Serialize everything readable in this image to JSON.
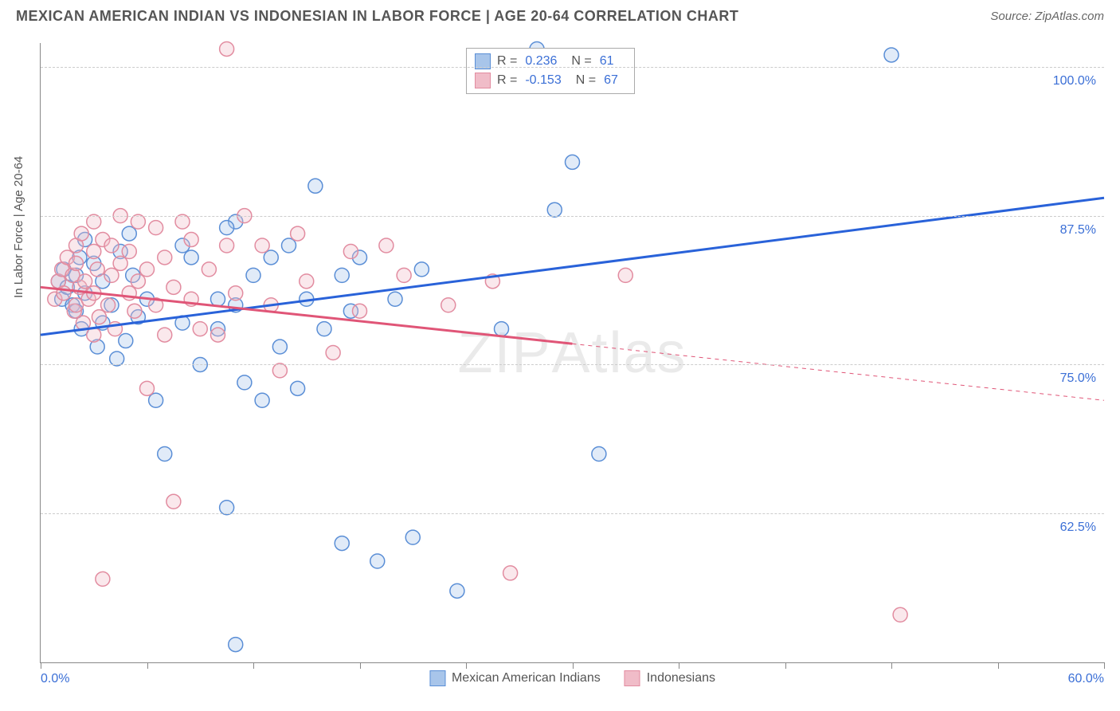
{
  "header": {
    "title": "MEXICAN AMERICAN INDIAN VS INDONESIAN IN LABOR FORCE | AGE 20-64 CORRELATION CHART",
    "source_label": "Source: ",
    "source_name": "ZipAtlas.com"
  },
  "chart": {
    "type": "scatter_with_regression",
    "ylabel": "In Labor Force | Age 20-64",
    "watermark": "ZIPAtlas",
    "xlim": [
      0,
      60
    ],
    "ylim": [
      50,
      102
    ],
    "x_ticks": [
      0,
      6,
      12,
      18,
      24,
      30,
      36,
      42,
      48,
      54,
      60
    ],
    "x_tick_labels": {
      "0": "0.0%",
      "60": "60.0%"
    },
    "y_gridlines": [
      62.5,
      75.0,
      87.5,
      100.0
    ],
    "y_tick_labels": [
      "62.5%",
      "75.0%",
      "87.5%",
      "100.0%"
    ],
    "background_color": "#ffffff",
    "grid_color": "#cccccc",
    "axis_color": "#888888",
    "tick_label_color": "#3b6fd6",
    "axis_label_color": "#555555",
    "point_radius": 9,
    "point_fill_opacity": 0.35,
    "point_stroke_width": 1.5,
    "line_width_solid": 3,
    "line_width_dash": 1,
    "series": [
      {
        "name": "Mexican American Indians",
        "color_stroke": "#5a8ed6",
        "color_fill": "#a8c5ea",
        "line_color": "#2962d9",
        "R": "0.236",
        "N": "61",
        "regression": {
          "x1": 0,
          "y1": 77.5,
          "x2": 60,
          "y2": 89.0,
          "solid_until_x": 60
        },
        "points": [
          [
            1.0,
            82.0
          ],
          [
            1.2,
            80.5
          ],
          [
            1.5,
            81.5
          ],
          [
            1.3,
            83.0
          ],
          [
            2.0,
            82.5
          ],
          [
            1.8,
            80.0
          ],
          [
            2.2,
            84.0
          ],
          [
            2.5,
            81.0
          ],
          [
            2.0,
            79.5
          ],
          [
            3.0,
            83.5
          ],
          [
            2.3,
            78.0
          ],
          [
            2.5,
            85.5
          ],
          [
            3.5,
            82.0
          ],
          [
            4.0,
            80.0
          ],
          [
            4.5,
            84.5
          ],
          [
            3.2,
            76.5
          ],
          [
            3.5,
            78.5
          ],
          [
            5.0,
            86.0
          ],
          [
            4.3,
            75.5
          ],
          [
            5.5,
            79.0
          ],
          [
            6.0,
            80.5
          ],
          [
            4.8,
            77.0
          ],
          [
            6.5,
            72.0
          ],
          [
            7.0,
            67.5
          ],
          [
            5.2,
            82.5
          ],
          [
            11.0,
            87.0
          ],
          [
            8.0,
            78.5
          ],
          [
            8.0,
            85.0
          ],
          [
            8.5,
            84.0
          ],
          [
            9.0,
            75.0
          ],
          [
            10.5,
            86.5
          ],
          [
            10.0,
            80.5
          ],
          [
            10.0,
            78.0
          ],
          [
            10.5,
            63.0
          ],
          [
            11.0,
            80.0
          ],
          [
            11.0,
            51.5
          ],
          [
            11.5,
            73.5
          ],
          [
            12.0,
            82.5
          ],
          [
            12.5,
            72.0
          ],
          [
            13.0,
            84.0
          ],
          [
            13.5,
            76.5
          ],
          [
            14.0,
            85.0
          ],
          [
            14.5,
            73.0
          ],
          [
            15.0,
            80.5
          ],
          [
            15.5,
            90.0
          ],
          [
            16.0,
            78.0
          ],
          [
            17.0,
            82.5
          ],
          [
            17.0,
            60.0
          ],
          [
            17.5,
            79.5
          ],
          [
            18.0,
            84.0
          ],
          [
            19.0,
            58.5
          ],
          [
            20.0,
            80.5
          ],
          [
            21.0,
            60.5
          ],
          [
            21.5,
            83.0
          ],
          [
            23.5,
            56.0
          ],
          [
            26.0,
            78.0
          ],
          [
            28.0,
            101.5
          ],
          [
            29.0,
            88.0
          ],
          [
            30.0,
            92.0
          ],
          [
            31.5,
            67.5
          ],
          [
            48.0,
            101.0
          ]
        ]
      },
      {
        "name": "Indonesians",
        "color_stroke": "#e28ca0",
        "color_fill": "#f0bcc8",
        "line_color": "#e05577",
        "R": "-0.153",
        "N": "67",
        "regression": {
          "x1": 0,
          "y1": 81.5,
          "x2": 60,
          "y2": 72.0,
          "solid_until_x": 30
        },
        "points": [
          [
            0.8,
            80.5
          ],
          [
            1.0,
            82.0
          ],
          [
            1.2,
            83.0
          ],
          [
            1.3,
            81.0
          ],
          [
            1.5,
            84.0
          ],
          [
            1.8,
            82.5
          ],
          [
            1.9,
            79.5
          ],
          [
            2.0,
            80.0
          ],
          [
            2.0,
            85.0
          ],
          [
            2.0,
            83.5
          ],
          [
            2.2,
            81.5
          ],
          [
            2.3,
            86.0
          ],
          [
            2.4,
            78.5
          ],
          [
            2.5,
            82.0
          ],
          [
            2.7,
            80.5
          ],
          [
            3.0,
            84.5
          ],
          [
            3.0,
            81.0
          ],
          [
            3.0,
            77.5
          ],
          [
            3.2,
            83.0
          ],
          [
            3.3,
            79.0
          ],
          [
            3.5,
            85.5
          ],
          [
            3.0,
            87.0
          ],
          [
            3.8,
            80.0
          ],
          [
            4.0,
            82.5
          ],
          [
            4.0,
            85.0
          ],
          [
            4.2,
            78.0
          ],
          [
            4.5,
            83.5
          ],
          [
            4.5,
            87.5
          ],
          [
            3.5,
            57.0
          ],
          [
            5.0,
            81.0
          ],
          [
            5.0,
            84.5
          ],
          [
            5.3,
            79.5
          ],
          [
            5.5,
            82.0
          ],
          [
            5.5,
            87.0
          ],
          [
            6.0,
            73.0
          ],
          [
            6.0,
            83.0
          ],
          [
            6.5,
            80.0
          ],
          [
            6.5,
            86.5
          ],
          [
            7.0,
            77.5
          ],
          [
            7.0,
            84.0
          ],
          [
            7.5,
            81.5
          ],
          [
            7.5,
            63.5
          ],
          [
            8.0,
            87.0
          ],
          [
            8.5,
            80.5
          ],
          [
            8.5,
            85.5
          ],
          [
            9.0,
            78.0
          ],
          [
            9.5,
            83.0
          ],
          [
            10.0,
            77.5
          ],
          [
            10.5,
            85.0
          ],
          [
            11.0,
            81.0
          ],
          [
            11.5,
            87.5
          ],
          [
            10.5,
            101.5
          ],
          [
            12.5,
            85.0
          ],
          [
            13.0,
            80.0
          ],
          [
            13.5,
            74.5
          ],
          [
            14.5,
            86.0
          ],
          [
            15.0,
            82.0
          ],
          [
            16.5,
            76.0
          ],
          [
            17.5,
            84.5
          ],
          [
            18.0,
            79.5
          ],
          [
            19.5,
            85.0
          ],
          [
            20.5,
            82.5
          ],
          [
            23.0,
            80.0
          ],
          [
            25.5,
            82.0
          ],
          [
            26.5,
            57.5
          ],
          [
            33.0,
            82.5
          ],
          [
            48.5,
            54.0
          ]
        ]
      }
    ],
    "legend_bottom": [
      {
        "label": "Mexican American Indians",
        "swatch_fill": "#a8c5ea",
        "swatch_stroke": "#5a8ed6"
      },
      {
        "label": "Indonesians",
        "swatch_fill": "#f0bcc8",
        "swatch_stroke": "#e28ca0"
      }
    ]
  }
}
